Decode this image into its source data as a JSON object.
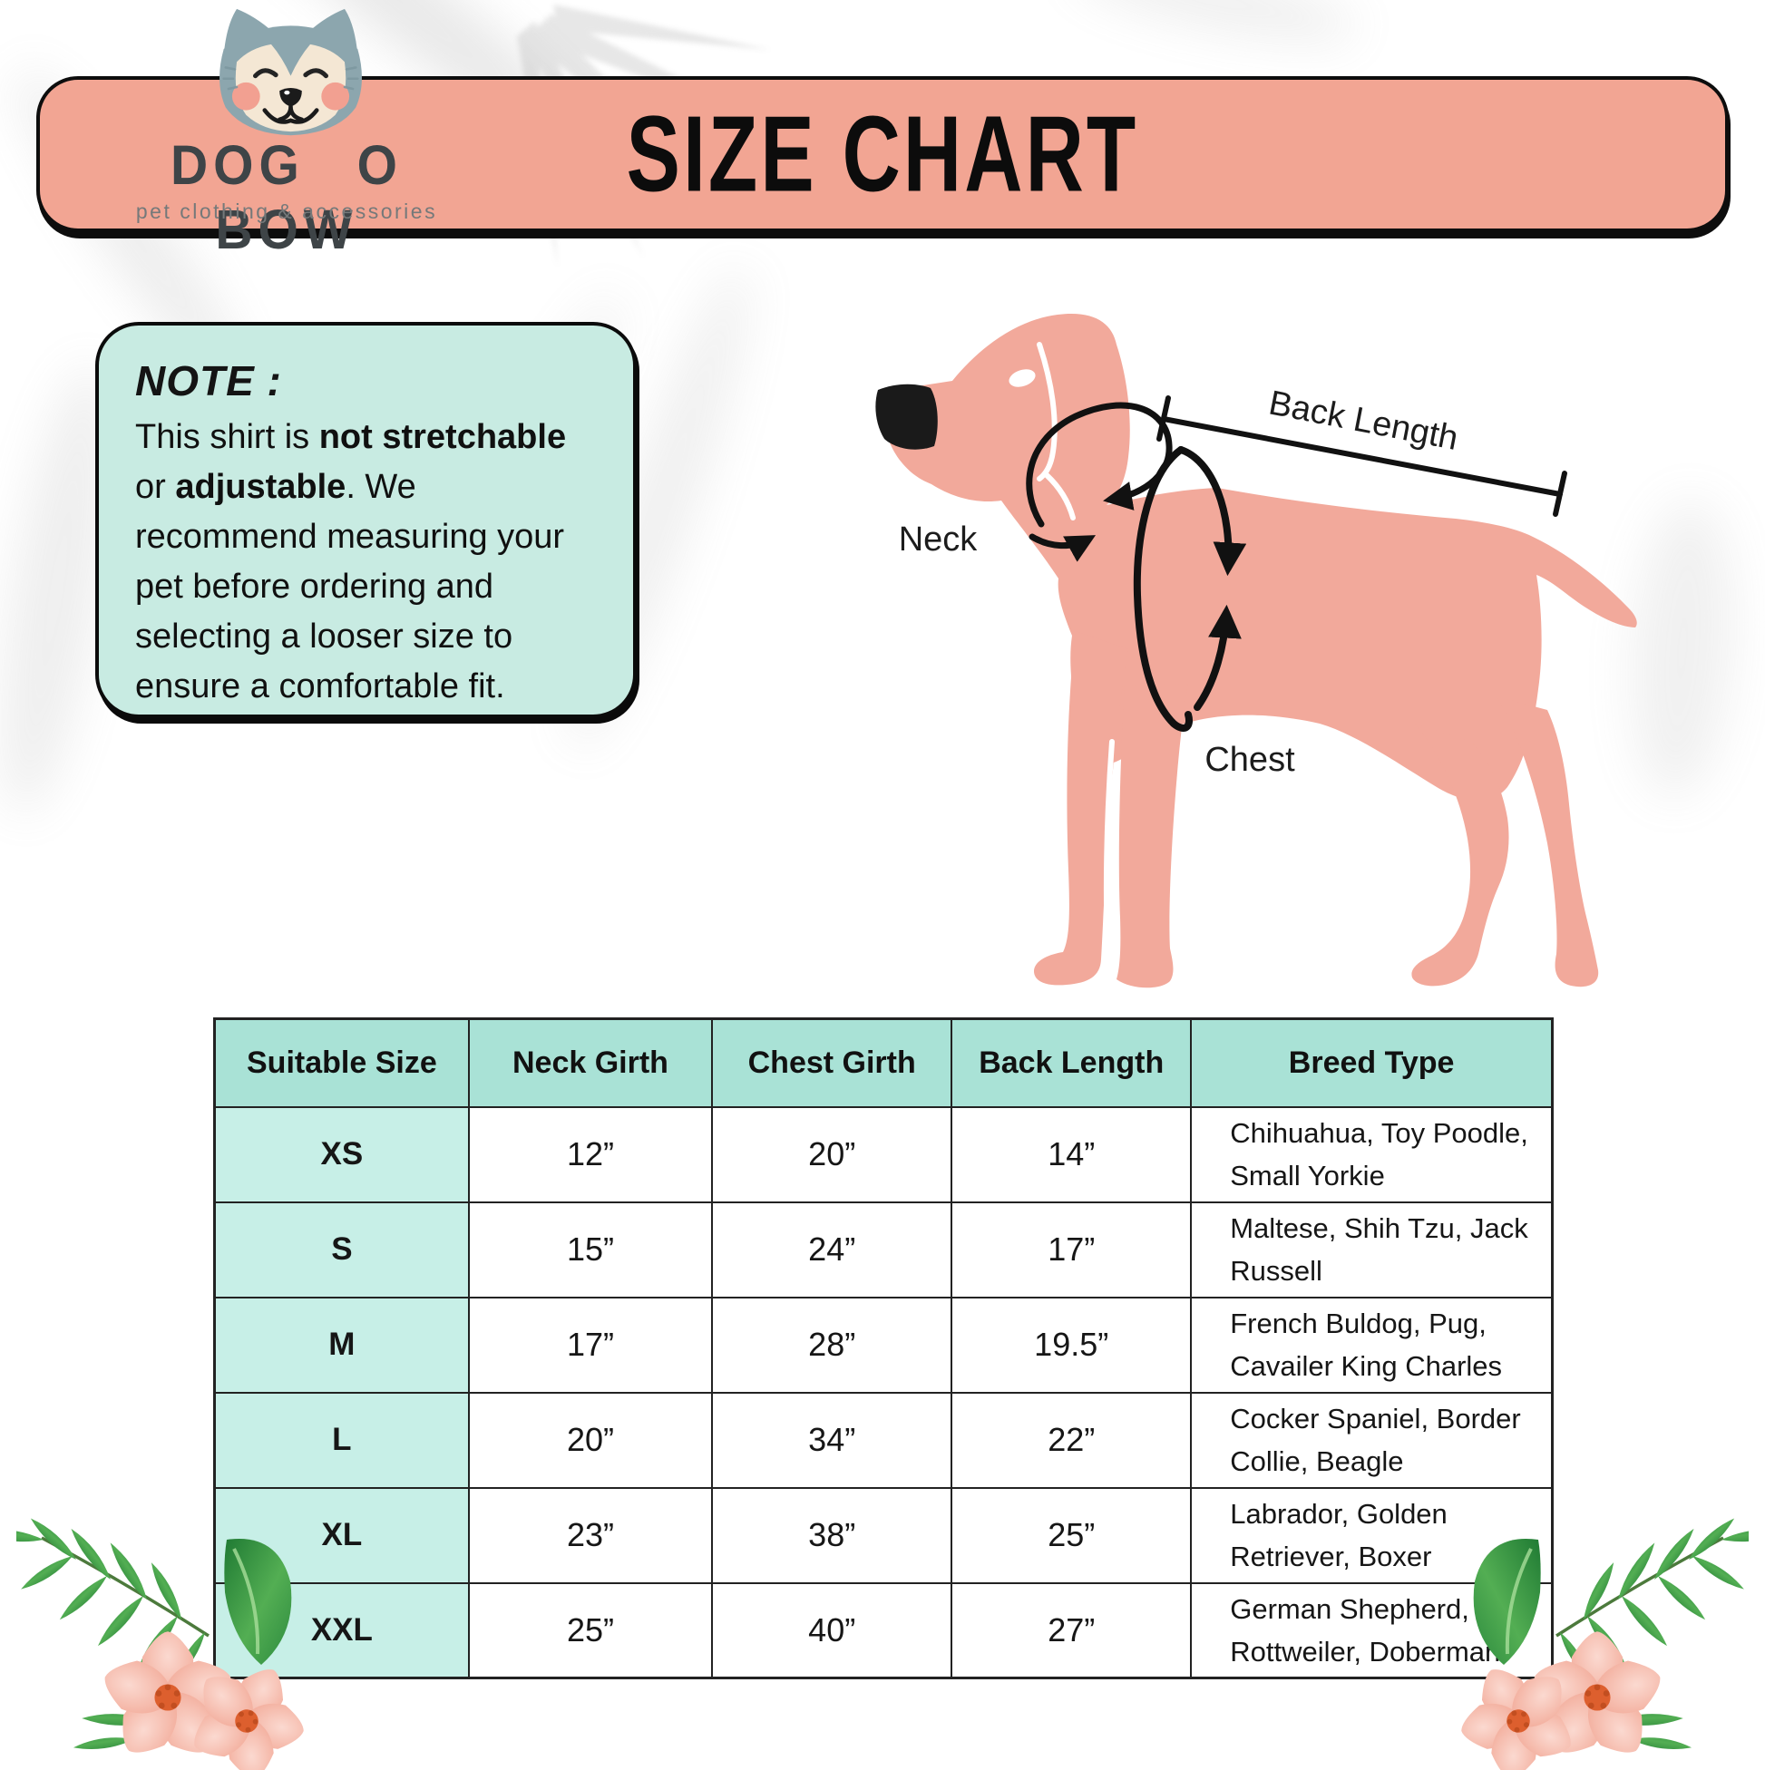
{
  "brand": {
    "name": "DOG O BOW",
    "tagline": "pet clothing & accessories"
  },
  "header": {
    "title": "SIZE CHART"
  },
  "note": {
    "title": "NOTE :",
    "lines": [
      [
        {
          "t": "This shirt is "
        },
        {
          "t": "not stretchable",
          "b": true
        }
      ],
      [
        {
          "t": " or "
        },
        {
          "t": "adjustable",
          "b": true
        },
        {
          "t": ". We"
        }
      ],
      [
        {
          "t": "recommend measuring your"
        }
      ],
      [
        {
          "t": "pet before ordering and"
        }
      ],
      [
        {
          "t": "selecting a looser size to"
        }
      ],
      [
        {
          "t": "ensure a comfortable fit."
        }
      ]
    ]
  },
  "diagram": {
    "labels": {
      "back_length": "Back Length",
      "neck": "Neck",
      "chest": "Chest"
    }
  },
  "size_table": {
    "headers": [
      "Suitable Size",
      "Neck Girth",
      "Chest Girth",
      "Back Length",
      "Breed Type"
    ],
    "rows": [
      {
        "size": "XS",
        "neck_girth": "12”",
        "chest_girth": "20”",
        "back_length": "14”",
        "breeds": "Chihuahua, Toy Poodle, Small Yorkie"
      },
      {
        "size": "S",
        "neck_girth": "15”",
        "chest_girth": "24”",
        "back_length": "17”",
        "breeds": "Maltese, Shih Tzu, Jack Russell"
      },
      {
        "size": "M",
        "neck_girth": "17”",
        "chest_girth": "28”",
        "back_length": "19.5”",
        "breeds": "French Buldog, Pug, Cavailer King Charles"
      },
      {
        "size": "L",
        "neck_girth": "20”",
        "chest_girth": "34”",
        "back_length": "22”",
        "breeds": "Cocker Spaniel, Border Collie, Beagle"
      },
      {
        "size": "XL",
        "neck_girth": "23”",
        "chest_girth": "38”",
        "back_length": "25”",
        "breeds": "Labrador, Golden Retriever, Boxer"
      },
      {
        "size": "XXL",
        "neck_girth": "25”",
        "chest_girth": "40”",
        "back_length": "27”",
        "breeds": "German Shepherd, Rottweiler, Doberman"
      }
    ]
  },
  "colors": {
    "banner_pink": "#F2A593",
    "note_mint": "#C8EBE2",
    "table_header_mint": "#A9E2D6",
    "size_column_mint": "#C7EFE7",
    "dog_pink": "#F2A99B",
    "logo_fur": "#8CA6AE",
    "logo_face": "#F4E7D4",
    "flower_pink": "#F2AC9C",
    "leaf_green": "#2F8F3B"
  }
}
